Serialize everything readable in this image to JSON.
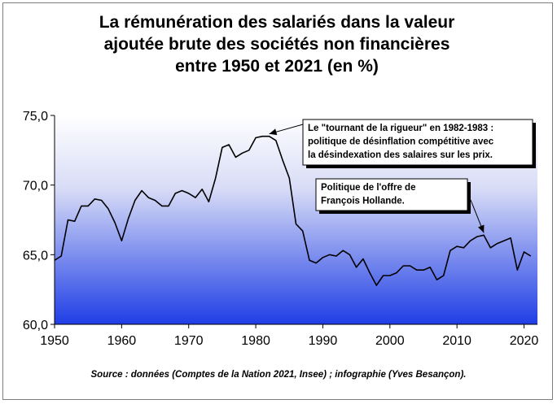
{
  "chart_data": {
    "type": "area",
    "title_lines": [
      "La rémunération des salariés dans la valeur",
      "ajoutée brute des sociétés non financières",
      "entre 1950 et 2021 (en %)"
    ],
    "xlabel": "",
    "ylabel": "",
    "xlim": [
      1950,
      2022
    ],
    "ylim": [
      60,
      75
    ],
    "x_ticks": [
      "1950",
      "1960",
      "1970",
      "1980",
      "1990",
      "2000",
      "2010",
      "2020"
    ],
    "y_ticks": [
      "60,0",
      "65,0",
      "70,0",
      "75,0"
    ],
    "grid": false,
    "fill": "gradient white to blue",
    "colors": {
      "line": "#000000",
      "fill_top": "#ffffff",
      "fill_bottom": "#1f3ee6"
    },
    "series": [
      {
        "x": [
          1950,
          1951,
          1952,
          1953,
          1954,
          1955,
          1956,
          1957,
          1958,
          1959,
          1960,
          1961,
          1962,
          1963,
          1964,
          1965,
          1966,
          1967,
          1968,
          1969,
          1970,
          1971,
          1972,
          1973,
          1974,
          1975,
          1976,
          1977,
          1978,
          1979,
          1980,
          1981,
          1982,
          1983,
          1984,
          1985,
          1986,
          1987,
          1988,
          1989,
          1990,
          1991,
          1992,
          1993,
          1994,
          1995,
          1996,
          1997,
          1998,
          1999,
          2000,
          2001,
          2002,
          2003,
          2004,
          2005,
          2006,
          2007,
          2008,
          2009,
          2010,
          2011,
          2012,
          2013,
          2014,
          2015,
          2016,
          2017,
          2018,
          2019,
          2020,
          2021
        ],
        "y": [
          64.6,
          64.9,
          67.5,
          67.4,
          68.5,
          68.5,
          69.0,
          68.9,
          68.3,
          67.3,
          66.0,
          67.6,
          68.9,
          69.6,
          69.1,
          68.9,
          68.5,
          68.5,
          69.4,
          69.6,
          69.4,
          69.1,
          69.7,
          68.8,
          70.5,
          72.7,
          72.9,
          72.0,
          72.3,
          72.5,
          73.4,
          73.5,
          73.5,
          73.2,
          71.8,
          70.5,
          67.2,
          66.7,
          64.6,
          64.4,
          64.8,
          65.0,
          64.9,
          65.3,
          65.0,
          64.1,
          64.7,
          63.7,
          62.8,
          63.5,
          63.5,
          63.7,
          64.2,
          64.2,
          63.9,
          63.9,
          64.1,
          63.2,
          63.5,
          65.3,
          65.6,
          65.5,
          66.0,
          66.3,
          66.4,
          65.5,
          65.8,
          66.0,
          66.2,
          63.9,
          65.2,
          64.9
        ]
      }
    ],
    "annotations": [
      {
        "lines": [
          "Le \"tournant de la rigueur\" en 1982-1983 :",
          "politique de désinflation compétitive avec",
          "la désindexation des salaires sur les prix."
        ],
        "points_to": {
          "x": 1982,
          "y": 73.5
        }
      },
      {
        "lines": [
          "Politique de l'offre de",
          "François Hollande."
        ],
        "points_to": {
          "x": 2014,
          "y": 66.4
        }
      }
    ],
    "source": "Source : données (Comptes de la Nation 2021, Insee) ; infographie (Yves Besançon)."
  }
}
